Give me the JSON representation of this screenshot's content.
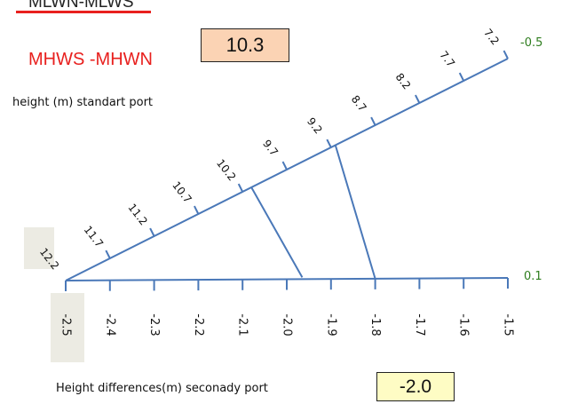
{
  "labels": {
    "struck": "MLWN-MLWS",
    "red": "MHWS -MHWN",
    "top_value": "10.3",
    "top_axis_title": "height (m) standart port",
    "bottom_axis_title": "Height differences(m) seconady port",
    "bottom_value": "-2.0",
    "end_upper": "-0.5",
    "end_lower": "0.1"
  },
  "colors": {
    "line": "#4a78b8",
    "red": "#e8201e",
    "green": "#2e7d1e",
    "box_top": "#fbd3b4",
    "box_bottom": "#fefcc4",
    "highlight": "#ecebe3"
  },
  "diagonal_ticks": [
    "12.2",
    "11.7",
    "11.2",
    "10.7",
    "10.2",
    "9.7",
    "9.2",
    "8.7",
    "8.2",
    "7.7",
    "7.2"
  ],
  "horizontal_ticks": [
    "-2.5",
    "-2.4",
    "-2.3",
    "-2.2",
    "-2.1",
    "-2.0",
    "-1.9",
    "-1.8",
    "-1.7",
    "-1.6",
    "-1.5"
  ]
}
